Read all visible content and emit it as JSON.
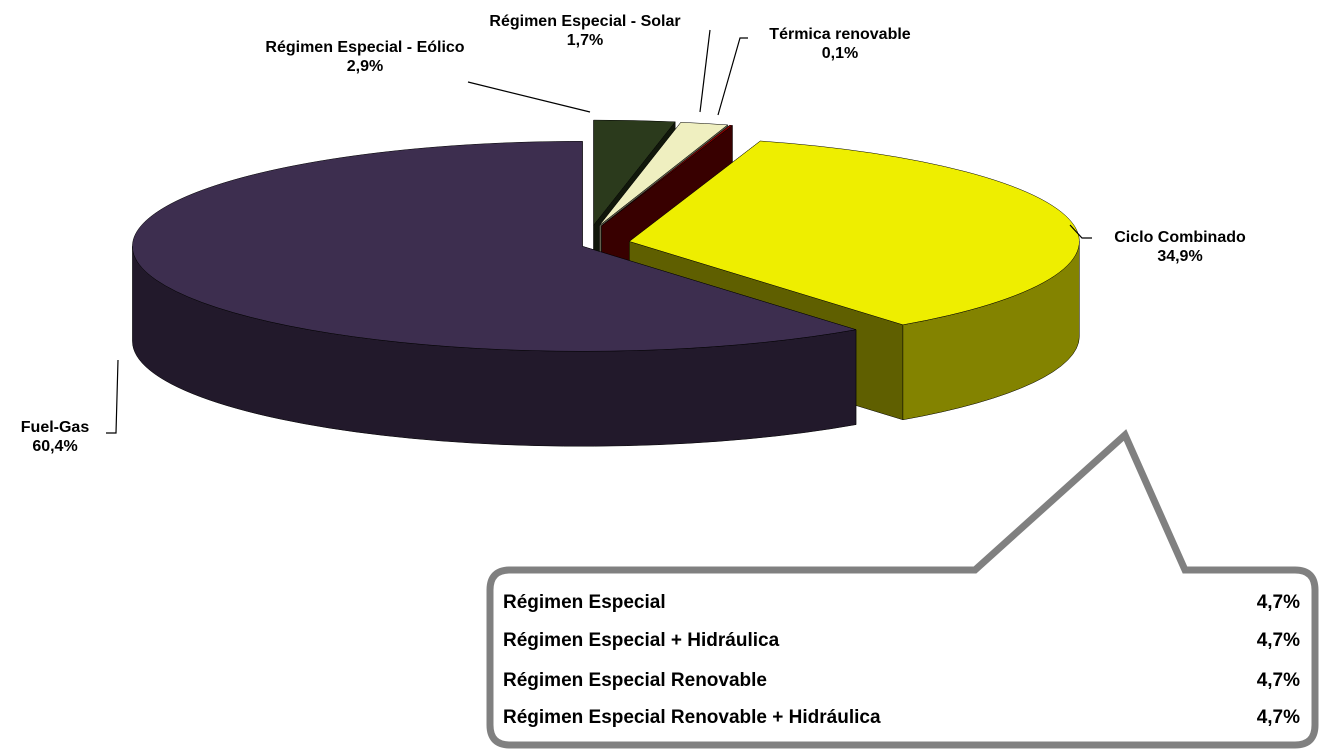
{
  "chart_data": {
    "type": "pie",
    "categories": [
      "Régimen Especial - Eólico",
      "Régimen Especial - Solar",
      "Térmica renovable",
      "Ciclo Combinado",
      "Fuel-Gas"
    ],
    "values": [
      2.9,
      1.7,
      0.1,
      34.9,
      60.4
    ],
    "value_labels": [
      "2,9%",
      "1,7%",
      "0,1%",
      "34,9%",
      "60,4%"
    ],
    "colors": [
      "#2b3a1c",
      "#efefc0",
      "#8b0000",
      "#eeee00",
      "#3d2e4f"
    ],
    "summary": {
      "labels": [
        "Régimen Especial",
        "Régimen Especial + Hidráulica",
        "Régimen Especial Renovable",
        "Régimen Especial Renovable + Hidráulica"
      ],
      "values": [
        4.7,
        4.7,
        4.7,
        4.7
      ],
      "value_labels": [
        "4,7%",
        "4,7%",
        "4,7%",
        "4,7%"
      ]
    }
  }
}
